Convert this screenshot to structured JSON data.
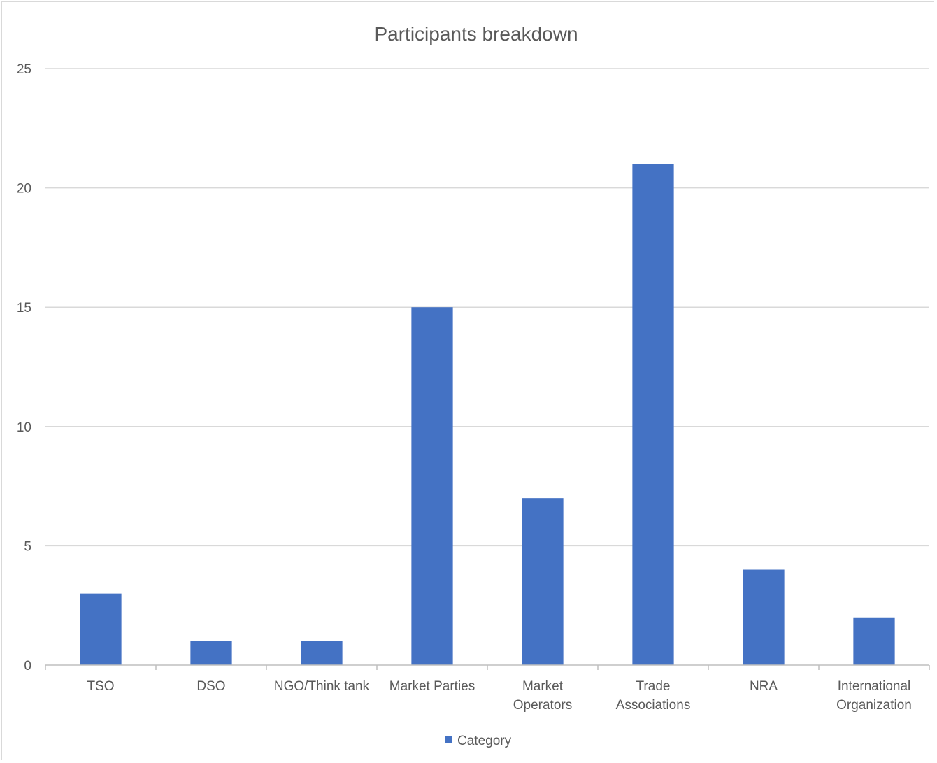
{
  "chart_data": {
    "type": "bar",
    "title": "Participants breakdown",
    "categories": [
      [
        "TSO"
      ],
      [
        "DSO"
      ],
      [
        "NGO/Think tank"
      ],
      [
        "Market Parties"
      ],
      [
        "Market",
        "Operators"
      ],
      [
        "Trade",
        "Associations"
      ],
      [
        "NRA"
      ],
      [
        "International",
        "Organization"
      ]
    ],
    "series": [
      {
        "name": "Category",
        "values": [
          3,
          1,
          1,
          15,
          7,
          21,
          4,
          2
        ],
        "color": "#4472c4"
      }
    ],
    "ylim": [
      0,
      25
    ],
    "yticks": [
      "0",
      "5",
      "10",
      "15",
      "20",
      "25"
    ],
    "grid": true,
    "legend_position": "bottom",
    "colors": {
      "bar": "#4472c4",
      "grid": "#d9d9d9",
      "axis": "#bfbfbf",
      "text": "#595959"
    }
  }
}
